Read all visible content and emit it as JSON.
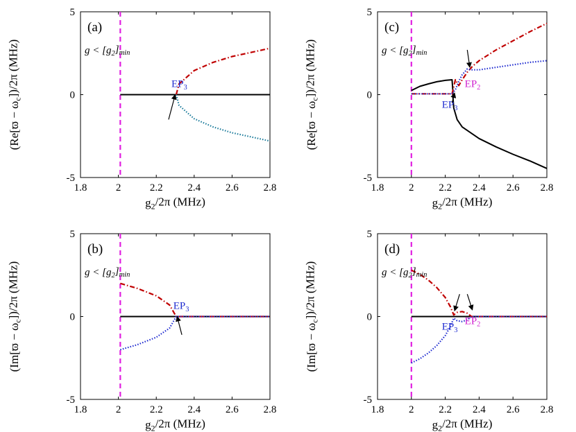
{
  "chart_data": [
    {
      "type": "line",
      "panel_label": "(a)",
      "xlabel": "g₂/2π (MHz)",
      "ylabel": "(Re[ϖ − ω_c])/2π (MHz)",
      "xlim": [
        1.8,
        2.8
      ],
      "ylim": [
        -5,
        5
      ],
      "x_ticks": [
        "1.8",
        "2",
        "2.2",
        "2.4",
        "2.6",
        "2.8"
      ],
      "y_ticks": [
        "-5",
        "0",
        "5"
      ],
      "annotation": "g < [g₂]min",
      "vline_x": 2.01,
      "ep_labels": [
        {
          "text": "EP₃",
          "color": "#1f2bd0",
          "x": 2.28,
          "y": 0.45
        }
      ],
      "arrows": [
        {
          "x": 2.3,
          "y": 0.0,
          "from_x": 2.265,
          "from_y": -1.5
        }
      ],
      "series": [
        {
          "color": "#000000",
          "style": "solid",
          "points": [
            [
              2.01,
              0
            ],
            [
              2.8,
              0
            ]
          ]
        },
        {
          "color": "#c00000",
          "style": "dashdot",
          "points": [
            [
              2.305,
              0
            ],
            [
              2.32,
              0.65
            ],
            [
              2.4,
              1.45
            ],
            [
              2.5,
              1.95
            ],
            [
              2.6,
              2.3
            ],
            [
              2.7,
              2.55
            ],
            [
              2.8,
              2.8
            ]
          ]
        },
        {
          "color": "#1a7a9a",
          "style": "dotted",
          "points": [
            [
              2.305,
              0
            ],
            [
              2.32,
              -0.65
            ],
            [
              2.4,
              -1.45
            ],
            [
              2.5,
              -1.95
            ],
            [
              2.6,
              -2.3
            ],
            [
              2.7,
              -2.55
            ],
            [
              2.8,
              -2.8
            ]
          ]
        }
      ]
    },
    {
      "type": "line",
      "panel_label": "(b)",
      "xlabel": "g₂/2π (MHz)",
      "ylabel": "(Im[ϖ − ω_c])/2π (MHz)",
      "xlim": [
        1.8,
        2.8
      ],
      "ylim": [
        -5,
        5
      ],
      "x_ticks": [
        "1.8",
        "2",
        "2.2",
        "2.4",
        "2.6",
        "2.8"
      ],
      "y_ticks": [
        "-5",
        "0",
        "5"
      ],
      "annotation": "g < [g₂]min",
      "vline_x": 2.01,
      "ep_labels": [
        {
          "text": "EP₃",
          "color": "#1f2bd0",
          "x": 2.29,
          "y": 0.45
        }
      ],
      "arrows": [
        {
          "x": 2.31,
          "y": 0.0,
          "from_x": 2.335,
          "from_y": -1.1
        }
      ],
      "series": [
        {
          "color": "#000000",
          "style": "solid",
          "points": [
            [
              2.01,
              0
            ],
            [
              2.8,
              0
            ]
          ]
        },
        {
          "color": "#c00000",
          "style": "dashdot",
          "points": [
            [
              2.01,
              2.0
            ],
            [
              2.1,
              1.7
            ],
            [
              2.2,
              1.25
            ],
            [
              2.27,
              0.7
            ],
            [
              2.305,
              0
            ],
            [
              2.8,
              0
            ]
          ]
        },
        {
          "color": "#1f2bd0",
          "style": "dotted",
          "points": [
            [
              2.01,
              -2.0
            ],
            [
              2.1,
              -1.7
            ],
            [
              2.2,
              -1.25
            ],
            [
              2.27,
              -0.7
            ],
            [
              2.305,
              0
            ],
            [
              2.8,
              0
            ]
          ]
        }
      ]
    },
    {
      "type": "line",
      "panel_label": "(c)",
      "xlabel": "g₂/2π (MHz)",
      "ylabel": "(Re[ϖ − ω_c])/2π (MHz)",
      "xlim": [
        1.8,
        2.8
      ],
      "ylim": [
        -5,
        5
      ],
      "x_ticks": [
        "1.8",
        "2",
        "2.2",
        "2.4",
        "2.6",
        "2.8"
      ],
      "y_ticks": [
        "-5",
        "0",
        "5"
      ],
      "annotation": "g < [g₂]min",
      "vline_x": 2.0,
      "ep_labels": [
        {
          "text": "EP₃",
          "color": "#1f2bd0",
          "x": 2.18,
          "y": -0.8
        },
        {
          "text": "EP₂",
          "color": "#d020d0",
          "x": 2.315,
          "y": 0.45
        }
      ],
      "arrows": [
        {
          "x": 2.255,
          "y": 0.1,
          "from_x": 2.24,
          "from_y": -0.5
        },
        {
          "x": 2.345,
          "y": 1.65,
          "from_x": 2.33,
          "from_y": 2.7
        }
      ],
      "series": [
        {
          "color": "#000000",
          "style": "solid",
          "points": [
            [
              2.0,
              0.25
            ],
            [
              2.05,
              0.5
            ],
            [
              2.1,
              0.65
            ],
            [
              2.15,
              0.78
            ],
            [
              2.2,
              0.86
            ],
            [
              2.24,
              0.9
            ],
            [
              2.245,
              0.2
            ],
            [
              2.245,
              -0.1
            ],
            [
              2.25,
              -0.8
            ],
            [
              2.27,
              -1.5
            ],
            [
              2.3,
              -1.95
            ],
            [
              2.4,
              -2.65
            ],
            [
              2.5,
              -3.15
            ],
            [
              2.6,
              -3.6
            ],
            [
              2.7,
              -4.0
            ],
            [
              2.8,
              -4.45
            ]
          ]
        },
        {
          "color": "#c00000",
          "style": "dashdot",
          "points": [
            [
              2.0,
              0.05
            ],
            [
              2.24,
              0.05
            ],
            [
              2.26,
              0.9
            ],
            [
              2.28,
              0.55
            ],
            [
              2.3,
              0.9
            ],
            [
              2.33,
              1.35
            ],
            [
              2.36,
              1.7
            ],
            [
              2.4,
              2.05
            ],
            [
              2.5,
              2.7
            ],
            [
              2.6,
              3.25
            ],
            [
              2.7,
              3.8
            ],
            [
              2.8,
              4.3
            ]
          ]
        },
        {
          "color": "#1f2bd0",
          "style": "dotted",
          "points": [
            [
              2.0,
              0.05
            ],
            [
              2.24,
              0.05
            ],
            [
              2.26,
              0.3
            ],
            [
              2.28,
              0.8
            ],
            [
              2.3,
              1.2
            ],
            [
              2.33,
              1.55
            ],
            [
              2.35,
              1.5
            ],
            [
              2.4,
              1.5
            ],
            [
              2.5,
              1.65
            ],
            [
              2.6,
              1.8
            ],
            [
              2.7,
              1.95
            ],
            [
              2.8,
              2.05
            ]
          ]
        }
      ]
    },
    {
      "type": "line",
      "panel_label": "(d)",
      "xlabel": "g₂/2π (MHz)",
      "ylabel": "(Im[ϖ − ω_c])/2π (MHz)",
      "xlim": [
        1.8,
        2.8
      ],
      "ylim": [
        -5,
        5
      ],
      "x_ticks": [
        "1.8",
        "2",
        "2.2",
        "2.4",
        "2.6",
        "2.8"
      ],
      "y_ticks": [
        "-5",
        "0",
        "5"
      ],
      "annotation": "g < [g₂]min",
      "vline_x": 2.0,
      "ep_labels": [
        {
          "text": "EP₃",
          "color": "#1f2bd0",
          "x": 2.18,
          "y": -0.8
        },
        {
          "text": "EP₂",
          "color": "#d020d0",
          "x": 2.315,
          "y": -0.45
        }
      ],
      "arrows": [
        {
          "x": 2.255,
          "y": 0.35,
          "from_x": 2.285,
          "from_y": 1.35
        },
        {
          "x": 2.36,
          "y": 0.4,
          "from_x": 2.33,
          "from_y": 1.35
        }
      ],
      "series": [
        {
          "color": "#000000",
          "style": "solid",
          "points": [
            [
              2.0,
              0
            ],
            [
              2.8,
              0
            ]
          ]
        },
        {
          "color": "#c00000",
          "style": "dashdot",
          "points": [
            [
              2.0,
              2.8
            ],
            [
              2.05,
              2.55
            ],
            [
              2.1,
              2.2
            ],
            [
              2.15,
              1.75
            ],
            [
              2.2,
              1.15
            ],
            [
              2.23,
              0.6
            ],
            [
              2.25,
              0.1
            ],
            [
              2.27,
              0.25
            ],
            [
              2.3,
              0.3
            ],
            [
              2.33,
              0.2
            ],
            [
              2.355,
              0
            ],
            [
              2.8,
              0
            ]
          ]
        },
        {
          "color": "#1f2bd0",
          "style": "dotted",
          "points": [
            [
              2.0,
              -2.8
            ],
            [
              2.05,
              -2.55
            ],
            [
              2.1,
              -2.2
            ],
            [
              2.15,
              -1.75
            ],
            [
              2.2,
              -1.15
            ],
            [
              2.23,
              -0.6
            ],
            [
              2.25,
              -0.1
            ],
            [
              2.27,
              -0.25
            ],
            [
              2.3,
              -0.3
            ],
            [
              2.33,
              -0.2
            ],
            [
              2.355,
              0
            ],
            [
              2.8,
              0
            ]
          ]
        }
      ]
    }
  ]
}
